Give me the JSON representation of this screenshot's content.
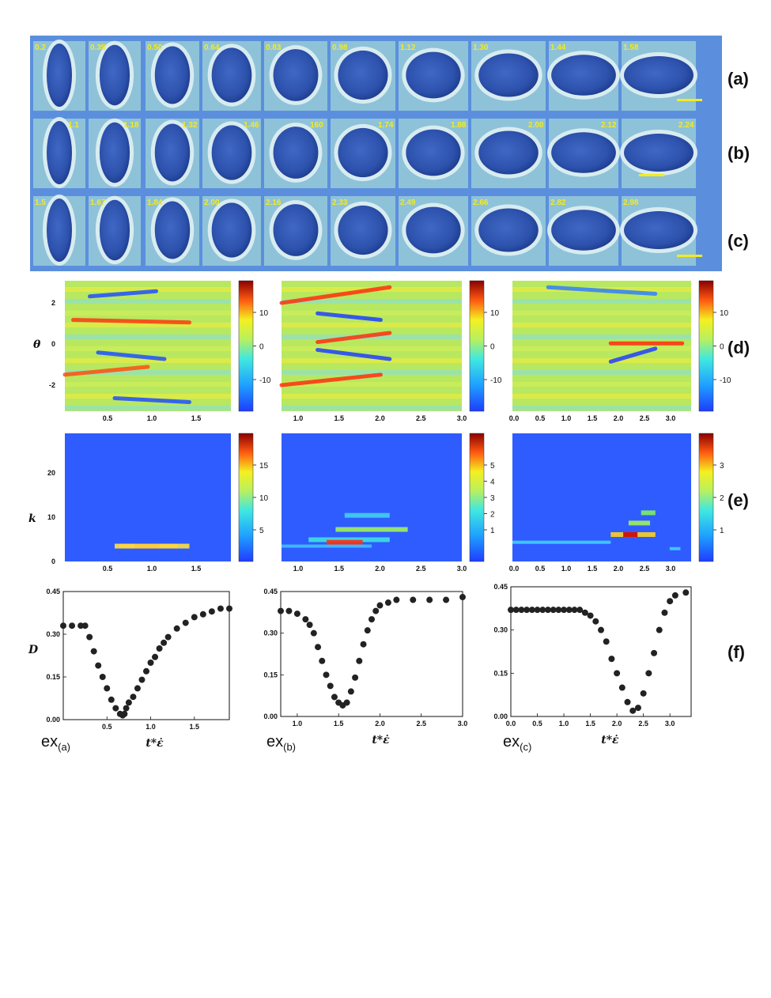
{
  "panel_labels": {
    "a": "(a)",
    "b": "(b)",
    "c": "(c)",
    "d": "(d)",
    "e": "(e)",
    "f": "(f)"
  },
  "micrographs": {
    "rows": [
      {
        "row": "a",
        "times": [
          "0.2",
          "0.35",
          "0.50",
          "0.64",
          "0.83",
          "0.98",
          "1.12",
          "1.30",
          "1.44",
          "1.58"
        ]
      },
      {
        "row": "b",
        "times": [
          "1.1",
          "1.18",
          "1.32",
          "1.46",
          "160",
          "1.74",
          "1.88",
          "2.00",
          "2.12",
          "2.24"
        ]
      },
      {
        "row": "c",
        "times": [
          "1.5",
          "1.67",
          "1.84",
          "2.00",
          "2.16",
          "2.33",
          "2.49",
          "2.66",
          "2.82",
          "2.98"
        ]
      }
    ],
    "colors": {
      "background": "#5b8fdd",
      "cell_fill": "#2f55b0",
      "halo": "#d8ecf0",
      "time_label": "#f4ea20",
      "scale_bar": "#f4ea20"
    }
  },
  "row_d": {
    "ylabel": "θ",
    "yticks": [
      "2",
      "0",
      "-2"
    ],
    "panels": [
      {
        "xticks": [
          "0.5",
          "1.0",
          "1.5"
        ],
        "colorbar_ticks": [
          "10",
          "0",
          "-10"
        ]
      },
      {
        "xticks": [
          "1.0",
          "1.5",
          "2.0",
          "2.5",
          "3.0"
        ],
        "colorbar_ticks": [
          "10",
          "0",
          "-10"
        ]
      },
      {
        "xticks": [
          "0.0",
          "0.5",
          "1.0",
          "1.5",
          "2.0",
          "2.5",
          "3.0"
        ],
        "colorbar_ticks": [
          "10",
          "0",
          "-10"
        ]
      }
    ]
  },
  "row_e": {
    "ylabel": "k",
    "yticks": [
      "20",
      "10",
      "0"
    ],
    "panels": [
      {
        "xticks": [
          "0.5",
          "1.0",
          "1.5"
        ],
        "colorbar_ticks": [
          "15",
          "10",
          "5"
        ]
      },
      {
        "xticks": [
          "1.0",
          "1.5",
          "2.0",
          "2.5",
          "3.0"
        ],
        "colorbar_ticks": [
          "5",
          "4",
          "3",
          "2",
          "1"
        ]
      },
      {
        "xticks": [
          "0.0",
          "0.5",
          "1.0",
          "1.5",
          "2.0",
          "2.5",
          "3.0"
        ],
        "colorbar_ticks": [
          "3",
          "2",
          "1"
        ]
      }
    ]
  },
  "row_f": {
    "ylabel": "D",
    "xlabel": "t*ε̇",
    "ex_labels": [
      {
        "main": "ex",
        "sub": "(a)"
      },
      {
        "main": "ex",
        "sub": "(b)"
      },
      {
        "main": "ex",
        "sub": "(c)"
      }
    ]
  },
  "chart_data": [
    {
      "type": "scatter",
      "title": "",
      "xlabel": "t*ε̇",
      "ylabel": "D",
      "xlim": [
        0.0,
        1.9
      ],
      "ylim": [
        0.0,
        0.45
      ],
      "xticks": [
        "0.5",
        "1.0",
        "1.5"
      ],
      "yticks": [
        "0.00",
        "0.15",
        "0.30",
        "0.45"
      ],
      "x": [
        0.0,
        0.1,
        0.2,
        0.25,
        0.3,
        0.35,
        0.4,
        0.45,
        0.5,
        0.55,
        0.6,
        0.65,
        0.68,
        0.7,
        0.72,
        0.75,
        0.8,
        0.85,
        0.9,
        0.95,
        1.0,
        1.05,
        1.1,
        1.15,
        1.2,
        1.3,
        1.4,
        1.5,
        1.6,
        1.7,
        1.8,
        1.9
      ],
      "y": [
        0.33,
        0.33,
        0.33,
        0.33,
        0.29,
        0.24,
        0.19,
        0.15,
        0.11,
        0.07,
        0.04,
        0.02,
        0.015,
        0.02,
        0.04,
        0.06,
        0.08,
        0.11,
        0.14,
        0.17,
        0.2,
        0.22,
        0.25,
        0.27,
        0.29,
        0.32,
        0.34,
        0.36,
        0.37,
        0.38,
        0.39,
        0.39
      ]
    },
    {
      "type": "scatter",
      "title": "",
      "xlabel": "t*ε̇",
      "ylabel": "",
      "xlim": [
        0.8,
        3.0
      ],
      "ylim": [
        0.0,
        0.45
      ],
      "xticks": [
        "1.0",
        "1.5",
        "2.0",
        "2.5",
        "3.0"
      ],
      "yticks": [
        "0.00",
        "0.15",
        "0.30",
        "0.45"
      ],
      "x": [
        0.8,
        0.9,
        1.0,
        1.1,
        1.15,
        1.2,
        1.25,
        1.3,
        1.35,
        1.4,
        1.45,
        1.5,
        1.55,
        1.6,
        1.65,
        1.7,
        1.75,
        1.8,
        1.85,
        1.9,
        1.95,
        2.0,
        2.1,
        2.2,
        2.4,
        2.6,
        2.8,
        3.0
      ],
      "y": [
        0.38,
        0.38,
        0.37,
        0.35,
        0.33,
        0.3,
        0.25,
        0.2,
        0.15,
        0.11,
        0.07,
        0.05,
        0.04,
        0.05,
        0.09,
        0.14,
        0.2,
        0.26,
        0.31,
        0.35,
        0.38,
        0.4,
        0.41,
        0.42,
        0.42,
        0.42,
        0.42,
        0.43
      ]
    },
    {
      "type": "scatter",
      "title": "",
      "xlabel": "t*ε̇",
      "ylabel": "",
      "xlim": [
        0.0,
        3.4
      ],
      "ylim": [
        0.0,
        0.45
      ],
      "xticks": [
        "0.0",
        "0.5",
        "1.0",
        "1.5",
        "2.0",
        "2.5",
        "3.0"
      ],
      "yticks": [
        "0.00",
        "0.15",
        "0.30",
        "0.45"
      ],
      "x": [
        0.0,
        0.1,
        0.2,
        0.3,
        0.4,
        0.5,
        0.6,
        0.7,
        0.8,
        0.9,
        1.0,
        1.1,
        1.2,
        1.3,
        1.4,
        1.5,
        1.6,
        1.7,
        1.8,
        1.9,
        2.0,
        2.1,
        2.2,
        2.3,
        2.4,
        2.5,
        2.6,
        2.7,
        2.8,
        2.9,
        3.0,
        3.1,
        3.3
      ],
      "y": [
        0.37,
        0.37,
        0.37,
        0.37,
        0.37,
        0.37,
        0.37,
        0.37,
        0.37,
        0.37,
        0.37,
        0.37,
        0.37,
        0.37,
        0.36,
        0.35,
        0.33,
        0.3,
        0.26,
        0.2,
        0.15,
        0.1,
        0.05,
        0.02,
        0.03,
        0.08,
        0.15,
        0.22,
        0.3,
        0.36,
        0.4,
        0.42,
        0.43
      ]
    }
  ]
}
